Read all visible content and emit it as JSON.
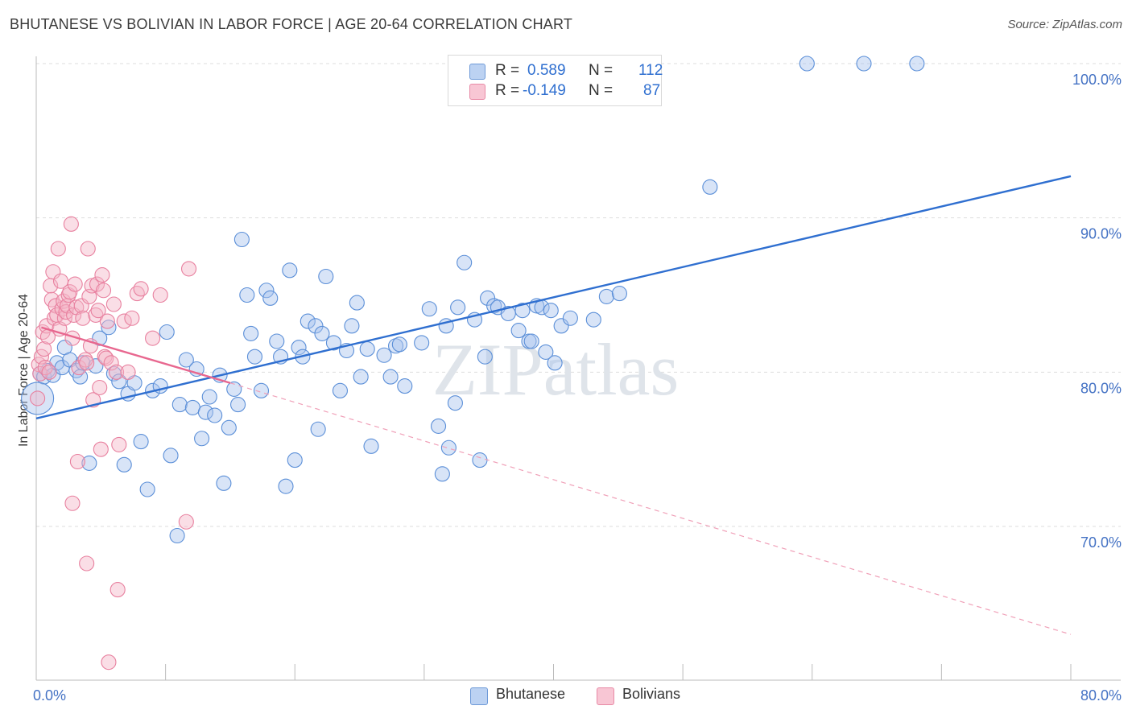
{
  "title": "BHUTANESE VS BOLIVIAN IN LABOR FORCE | AGE 20-64 CORRELATION CHART",
  "source": "Source: ZipAtlas.com",
  "colors": {
    "blue": "#2f6fd0",
    "pink": "#e8678f",
    "blue_fill": "#a9c4ee",
    "pink_fill": "#f5b6c8"
  },
  "legend": {
    "r_label": "R =",
    "n_label": "N =",
    "rows": [
      {
        "r": "0.589",
        "n": "112"
      },
      {
        "r": "-0.149",
        "n": "87"
      }
    ]
  },
  "bottom_legend": {
    "blue": "Bhutanese",
    "pink": "Bolivians"
  },
  "chart_data": {
    "type": "scatter",
    "title": "BHUTANESE VS BOLIVIAN IN LABOR FORCE | AGE 20-64 CORRELATION CHART",
    "xlabel": "",
    "ylabel": "In Labor Force | Age 20-64",
    "xlim": [
      0,
      80
    ],
    "ylim": [
      61,
      101
    ],
    "x_tick_labels": [
      "0.0%",
      "80.0%"
    ],
    "y_ticks": [
      {
        "value": 70,
        "label": "70.0%"
      },
      {
        "value": 80,
        "label": "80.0%"
      },
      {
        "value": 90,
        "label": "90.0%"
      },
      {
        "value": 100,
        "label": "100.0%"
      }
    ],
    "watermark": "ZIPatlas",
    "series": [
      {
        "name": "Bhutanese",
        "r": 0.589,
        "n": 112,
        "trend": {
          "x1": 0,
          "y1": 77.0,
          "x2": 80,
          "y2": 92.7
        },
        "points": [
          [
            0.3,
            79.9
          ],
          [
            0.6,
            79.7
          ],
          [
            0.9,
            80.1
          ],
          [
            1.3,
            79.8
          ],
          [
            1.6,
            80.6
          ],
          [
            2.0,
            80.3
          ],
          [
            2.2,
            81.6
          ],
          [
            2.6,
            80.8
          ],
          [
            3.1,
            80.1
          ],
          [
            3.4,
            79.7
          ],
          [
            3.6,
            80.6
          ],
          [
            4.1,
            74.1
          ],
          [
            4.6,
            80.4
          ],
          [
            4.9,
            82.2
          ],
          [
            5.6,
            82.9
          ],
          [
            6.0,
            79.9
          ],
          [
            6.4,
            79.4
          ],
          [
            6.8,
            74.0
          ],
          [
            7.1,
            78.6
          ],
          [
            7.6,
            79.3
          ],
          [
            8.1,
            75.5
          ],
          [
            8.6,
            72.4
          ],
          [
            9.0,
            78.8
          ],
          [
            9.6,
            79.1
          ],
          [
            10.1,
            82.6
          ],
          [
            10.4,
            74.6
          ],
          [
            10.9,
            69.4
          ],
          [
            11.1,
            77.9
          ],
          [
            11.6,
            80.8
          ],
          [
            12.1,
            77.7
          ],
          [
            12.4,
            80.2
          ],
          [
            12.8,
            75.7
          ],
          [
            13.1,
            77.4
          ],
          [
            13.4,
            78.4
          ],
          [
            13.8,
            77.2
          ],
          [
            14.2,
            79.8
          ],
          [
            14.5,
            72.8
          ],
          [
            14.9,
            76.4
          ],
          [
            15.3,
            78.9
          ],
          [
            15.6,
            77.9
          ],
          [
            15.9,
            88.6
          ],
          [
            16.3,
            85.0
          ],
          [
            16.6,
            82.5
          ],
          [
            16.9,
            81.0
          ],
          [
            17.4,
            78.8
          ],
          [
            17.8,
            85.3
          ],
          [
            18.1,
            84.8
          ],
          [
            18.6,
            82.0
          ],
          [
            18.9,
            81.0
          ],
          [
            19.3,
            72.6
          ],
          [
            19.6,
            86.6
          ],
          [
            20.0,
            74.3
          ],
          [
            20.3,
            81.6
          ],
          [
            20.6,
            81.0
          ],
          [
            21.0,
            83.3
          ],
          [
            21.6,
            83.0
          ],
          [
            21.8,
            76.3
          ],
          [
            22.1,
            82.5
          ],
          [
            22.4,
            86.2
          ],
          [
            23.0,
            81.9
          ],
          [
            23.5,
            78.8
          ],
          [
            24.0,
            81.4
          ],
          [
            24.4,
            83.0
          ],
          [
            24.8,
            84.5
          ],
          [
            25.1,
            79.7
          ],
          [
            25.6,
            81.5
          ],
          [
            25.9,
            75.2
          ],
          [
            26.9,
            81.1
          ],
          [
            27.4,
            79.7
          ],
          [
            27.8,
            81.7
          ],
          [
            28.1,
            81.8
          ],
          [
            28.5,
            79.1
          ],
          [
            29.8,
            81.9
          ],
          [
            30.4,
            84.1
          ],
          [
            31.1,
            76.5
          ],
          [
            31.4,
            73.4
          ],
          [
            31.7,
            83.0
          ],
          [
            31.9,
            75.1
          ],
          [
            32.4,
            78.0
          ],
          [
            32.6,
            84.2
          ],
          [
            33.1,
            87.1
          ],
          [
            33.9,
            83.4
          ],
          [
            34.3,
            74.3
          ],
          [
            34.7,
            81.0
          ],
          [
            34.9,
            84.8
          ],
          [
            35.4,
            84.3
          ],
          [
            35.7,
            84.2
          ],
          [
            36.5,
            83.8
          ],
          [
            37.3,
            82.7
          ],
          [
            37.6,
            84.0
          ],
          [
            38.1,
            82.0
          ],
          [
            38.3,
            82.0
          ],
          [
            38.7,
            84.3
          ],
          [
            39.1,
            84.2
          ],
          [
            39.4,
            81.3
          ],
          [
            39.8,
            84.0
          ],
          [
            40.1,
            80.6
          ],
          [
            40.6,
            83.0
          ],
          [
            41.3,
            83.5
          ],
          [
            43.1,
            83.4
          ],
          [
            44.1,
            84.9
          ],
          [
            45.1,
            85.1
          ],
          [
            52.1,
            92.0
          ],
          [
            59.6,
            100.0
          ],
          [
            64.0,
            100.0
          ],
          [
            68.1,
            100.0
          ]
        ]
      },
      {
        "name": "Bolivians",
        "r": -0.149,
        "n": 87,
        "trend": {
          "x1": 0.4,
          "y1": 82.9,
          "x2": 15,
          "y2": 79.3
        },
        "trend_dashed": {
          "x1": 15,
          "y1": 79.3,
          "x2": 80,
          "y2": 63.0
        },
        "points": [
          [
            0.2,
            80.5
          ],
          [
            0.3,
            79.9
          ],
          [
            0.4,
            81.0
          ],
          [
            0.5,
            82.6
          ],
          [
            0.6,
            81.5
          ],
          [
            0.7,
            80.3
          ],
          [
            0.8,
            83.0
          ],
          [
            0.9,
            82.3
          ],
          [
            1.0,
            80.0
          ],
          [
            1.1,
            85.6
          ],
          [
            1.2,
            84.7
          ],
          [
            1.3,
            86.5
          ],
          [
            1.4,
            83.5
          ],
          [
            1.5,
            84.3
          ],
          [
            1.6,
            83.7
          ],
          [
            1.7,
            88.0
          ],
          [
            1.8,
            82.8
          ],
          [
            1.9,
            85.9
          ],
          [
            2.0,
            84.1
          ],
          [
            2.1,
            84.6
          ],
          [
            2.2,
            83.5
          ],
          [
            2.3,
            83.9
          ],
          [
            2.4,
            84.3
          ],
          [
            2.5,
            85.0
          ],
          [
            2.6,
            85.2
          ],
          [
            2.7,
            89.6
          ],
          [
            2.8,
            82.2
          ],
          [
            2.9,
            83.7
          ],
          [
            3.0,
            85.7
          ],
          [
            3.1,
            84.2
          ],
          [
            3.2,
            74.2
          ],
          [
            3.3,
            80.3
          ],
          [
            3.5,
            84.3
          ],
          [
            3.6,
            83.5
          ],
          [
            3.8,
            80.8
          ],
          [
            3.9,
            80.6
          ],
          [
            4.0,
            88.0
          ],
          [
            4.1,
            84.9
          ],
          [
            4.2,
            81.7
          ],
          [
            4.3,
            85.6
          ],
          [
            4.4,
            78.2
          ],
          [
            4.6,
            83.7
          ],
          [
            4.7,
            85.7
          ],
          [
            4.8,
            84.0
          ],
          [
            4.9,
            79.0
          ],
          [
            5.0,
            75.0
          ],
          [
            5.1,
            86.3
          ],
          [
            5.2,
            85.3
          ],
          [
            5.3,
            81.0
          ],
          [
            5.4,
            80.9
          ],
          [
            5.5,
            83.3
          ],
          [
            5.8,
            80.6
          ],
          [
            6.0,
            84.4
          ],
          [
            6.2,
            80.0
          ],
          [
            6.4,
            75.3
          ],
          [
            6.8,
            83.3
          ],
          [
            7.1,
            80.0
          ],
          [
            7.4,
            83.5
          ],
          [
            7.8,
            85.1
          ],
          [
            8.1,
            85.4
          ],
          [
            9.0,
            82.2
          ],
          [
            9.6,
            85.0
          ],
          [
            11.8,
            86.7
          ],
          [
            11.6,
            70.3
          ],
          [
            2.8,
            71.5
          ],
          [
            3.9,
            67.6
          ],
          [
            6.3,
            65.9
          ],
          [
            5.6,
            61.2
          ],
          [
            0.1,
            78.3
          ]
        ]
      }
    ]
  }
}
